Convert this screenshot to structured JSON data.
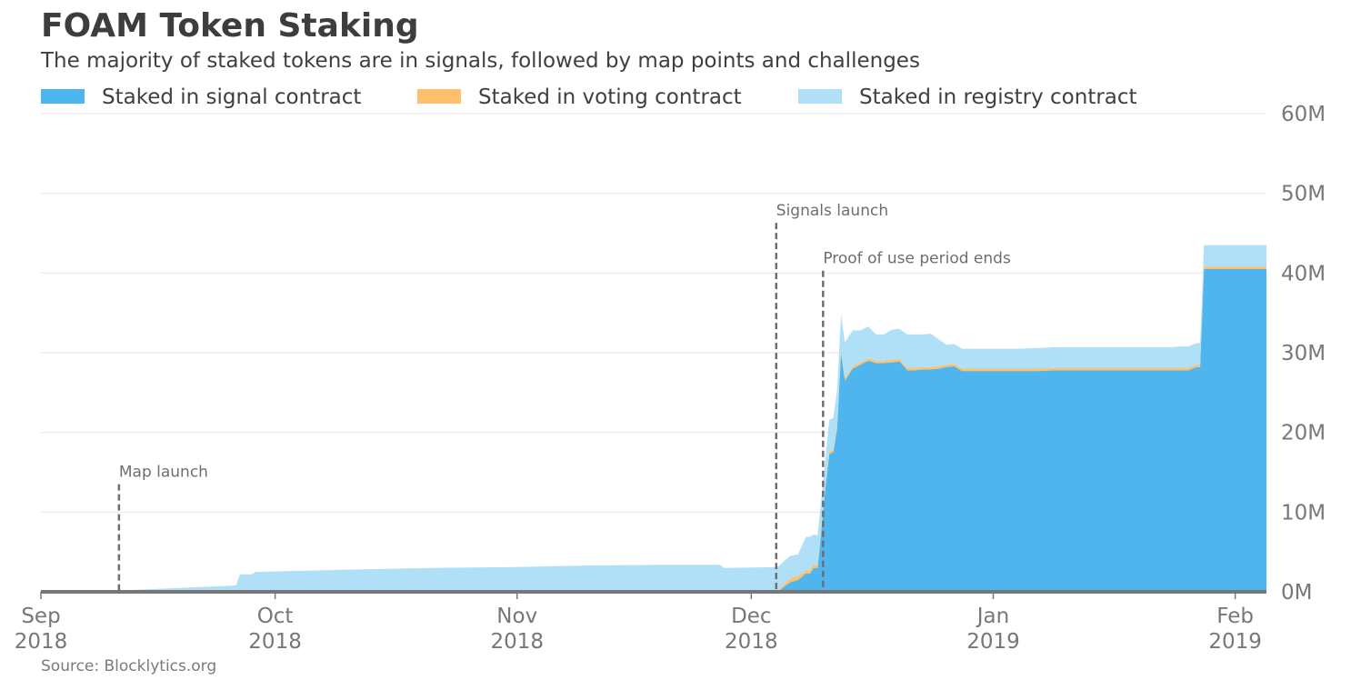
{
  "title": "FOAM Token Staking",
  "subtitle": "The majority of staked tokens are in signals, followed by map points and challenges",
  "source": "Source: Blocklytics.org",
  "legend": [
    {
      "label": "Staked in signal contract",
      "color": "#4eb5ef"
    },
    {
      "label": "Staked in voting contract",
      "color": "#ffbf6b"
    },
    {
      "label": "Staked in registry contract",
      "color": "#b0dff8"
    }
  ],
  "chart_data": {
    "type": "area",
    "stacked": true,
    "title": "FOAM Token Staking",
    "subtitle": "The majority of staked tokens are in signals, followed by map points and challenges",
    "xlabel": "",
    "ylabel": "",
    "x_unit": "days since 2018-09-01",
    "ylim": [
      0,
      60
    ],
    "y_unit": "M",
    "yticks": [
      0,
      10,
      20,
      30,
      40,
      50,
      60
    ],
    "ytick_labels": [
      "0M",
      "10M",
      "20M",
      "30M",
      "40M",
      "50M",
      "60M"
    ],
    "xlim": [
      0,
      157
    ],
    "xticks": [
      {
        "day": 0,
        "month": "Sep",
        "year": "2018"
      },
      {
        "day": 30,
        "month": "Oct",
        "year": "2018"
      },
      {
        "day": 61,
        "month": "Nov",
        "year": "2018"
      },
      {
        "day": 91,
        "month": "Dec",
        "year": "2018"
      },
      {
        "day": 122,
        "month": "Jan",
        "year": "2019"
      },
      {
        "day": 153,
        "month": "Feb",
        "year": "2019"
      }
    ],
    "grid": true,
    "legend_position": "top",
    "x": [
      0,
      10,
      11,
      25,
      25.5,
      27,
      27.5,
      40,
      50,
      60,
      70,
      80,
      87,
      87.5,
      94,
      94.5,
      95,
      96,
      97,
      98,
      98.5,
      99,
      99.5,
      100,
      100.5,
      101,
      101.5,
      102,
      102.5,
      103,
      104,
      105,
      106,
      107,
      108,
      109,
      110,
      111,
      112,
      113,
      114,
      115,
      116,
      117,
      118,
      120,
      125,
      128,
      130,
      135,
      140,
      145,
      146,
      147,
      148,
      148.5,
      149,
      157
    ],
    "series": [
      {
        "name": "Staked in signal contract",
        "color": "#4eb5ef",
        "values": [
          0,
          0,
          0,
          0,
          0,
          0,
          0,
          0,
          0,
          0,
          0,
          0,
          0,
          0,
          0,
          0,
          0.5,
          1.2,
          1.5,
          2.3,
          2.3,
          3.0,
          3.0,
          8.0,
          13.0,
          17.3,
          17.5,
          20.5,
          30.0,
          26.5,
          28.0,
          28.5,
          29.0,
          28.7,
          28.7,
          28.8,
          28.9,
          27.8,
          27.8,
          27.9,
          27.9,
          28.0,
          28.2,
          28.3,
          27.7,
          27.7,
          27.7,
          27.7,
          27.8,
          27.8,
          27.8,
          27.8,
          27.8,
          27.8,
          28.2,
          28.2,
          40.5,
          40.5
        ]
      },
      {
        "name": "Staked in voting contract",
        "color": "#ffbf6b",
        "values": [
          0,
          0,
          0,
          0,
          0,
          0,
          0,
          0,
          0,
          0,
          0,
          0,
          0,
          0,
          0.1,
          0.2,
          0.3,
          0.5,
          0.5,
          0.4,
          0.4,
          0.4,
          0.3,
          0.3,
          0.3,
          0.3,
          0.3,
          0.3,
          0.3,
          0.3,
          0.3,
          0.3,
          0.3,
          0.3,
          0.3,
          0.3,
          0.3,
          0.3,
          0.3,
          0.3,
          0.3,
          0.3,
          0.3,
          0.3,
          0.3,
          0.3,
          0.3,
          0.3,
          0.3,
          0.3,
          0.3,
          0.3,
          0.3,
          0.3,
          0.3,
          0.3,
          0.3,
          0.3
        ]
      },
      {
        "name": "Staked in registry contract",
        "color": "#b0dff8",
        "values": [
          0,
          0,
          0.2,
          0.8,
          2.2,
          2.2,
          2.5,
          2.8,
          3.0,
          3.1,
          3.3,
          3.4,
          3.4,
          3.0,
          3.0,
          3.0,
          2.9,
          2.8,
          2.7,
          4.2,
          4.2,
          3.8,
          3.8,
          3.5,
          3.5,
          4.0,
          4.0,
          4.5,
          4.5,
          4.5,
          4.5,
          4.0,
          4.0,
          3.3,
          3.3,
          3.8,
          3.8,
          4.2,
          4.2,
          4.1,
          4.2,
          3.4,
          2.5,
          2.5,
          2.5,
          2.5,
          2.5,
          2.6,
          2.6,
          2.6,
          2.6,
          2.6,
          2.7,
          2.7,
          2.7,
          2.7,
          2.7,
          2.7
        ]
      }
    ],
    "annotations": [
      {
        "label": "Map launch",
        "x": 10,
        "y_top": 13.5
      },
      {
        "label": "Signals launch",
        "x": 94.2,
        "y_top": 46.3
      },
      {
        "label": "Proof of use period ends",
        "x": 100.2,
        "y_top": 40.3
      }
    ]
  }
}
